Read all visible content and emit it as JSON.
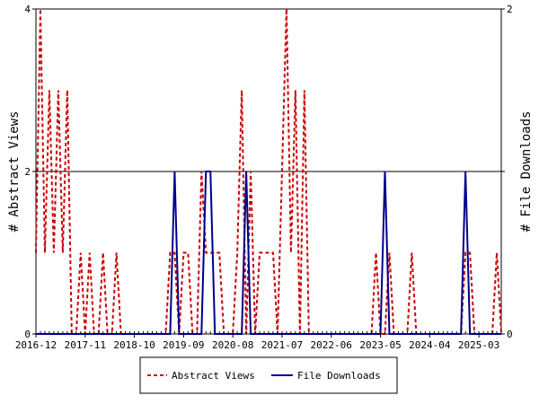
{
  "chart_data": {
    "type": "line",
    "title": "",
    "ylabel_left": "# Abstract Views",
    "ylabel_right": "# File Downloads",
    "ylim_left": [
      0,
      4
    ],
    "ylim_right": [
      0,
      2
    ],
    "y_ticks_left": [
      "0",
      "2",
      "4"
    ],
    "y_ticks_right": [
      "0",
      "1",
      "2"
    ],
    "x_tick_labels": [
      "2016-12",
      "2017-11",
      "2018-10",
      "2019-09",
      "2020-08",
      "2021-07",
      "2022-06",
      "2023-05",
      "2024-04",
      "2025-03"
    ],
    "x_tick_months": [
      0,
      11,
      22,
      33,
      44,
      55,
      66,
      77,
      88,
      99
    ],
    "x_months": 105,
    "legend_position": "bottom",
    "series": [
      {
        "name": "Abstract Views",
        "axis": "left",
        "color": "#cc0000",
        "style": "dashed",
        "values": [
          1,
          4,
          1,
          3,
          1,
          3,
          1,
          3,
          0,
          0,
          1,
          0,
          1,
          0,
          0,
          1,
          0,
          0,
          1,
          0,
          0,
          0,
          0,
          0,
          0,
          0,
          0,
          0,
          0,
          0,
          1,
          1,
          0,
          1,
          1,
          0,
          0,
          2,
          1,
          1,
          1,
          1,
          0,
          0,
          0,
          1,
          3,
          0,
          2,
          0,
          1,
          1,
          1,
          1,
          0,
          2,
          4,
          1,
          3,
          0,
          3,
          0,
          0,
          0,
          0,
          0,
          0,
          0,
          0,
          0,
          0,
          0,
          0,
          0,
          0,
          0,
          1,
          0,
          0,
          1,
          0,
          0,
          0,
          0,
          1,
          0,
          0,
          0,
          0,
          0,
          0,
          0,
          0,
          0,
          0,
          0,
          1,
          1,
          0,
          0,
          0,
          0,
          0,
          1,
          0
        ]
      },
      {
        "name": "File Downloads",
        "axis": "right",
        "color": "#00008b",
        "style": "solid",
        "values": [
          0,
          0,
          0,
          0,
          0,
          0,
          0,
          0,
          0,
          0,
          0,
          0,
          0,
          0,
          0,
          0,
          0,
          0,
          0,
          0,
          0,
          0,
          0,
          0,
          0,
          0,
          0,
          0,
          0,
          0,
          0,
          1,
          0,
          0,
          0,
          0,
          0,
          0,
          1,
          1,
          0,
          0,
          0,
          0,
          0,
          0,
          0,
          1,
          0,
          0,
          0,
          0,
          0,
          0,
          0,
          0,
          0,
          0,
          0,
          0,
          0,
          0,
          0,
          0,
          0,
          0,
          0,
          0,
          0,
          0,
          0,
          0,
          0,
          0,
          0,
          0,
          0,
          0,
          1,
          0,
          0,
          0,
          0,
          0,
          0,
          0,
          0,
          0,
          0,
          0,
          0,
          0,
          0,
          0,
          0,
          0,
          1,
          0,
          0,
          0,
          0,
          0,
          0,
          0,
          0
        ]
      }
    ]
  }
}
